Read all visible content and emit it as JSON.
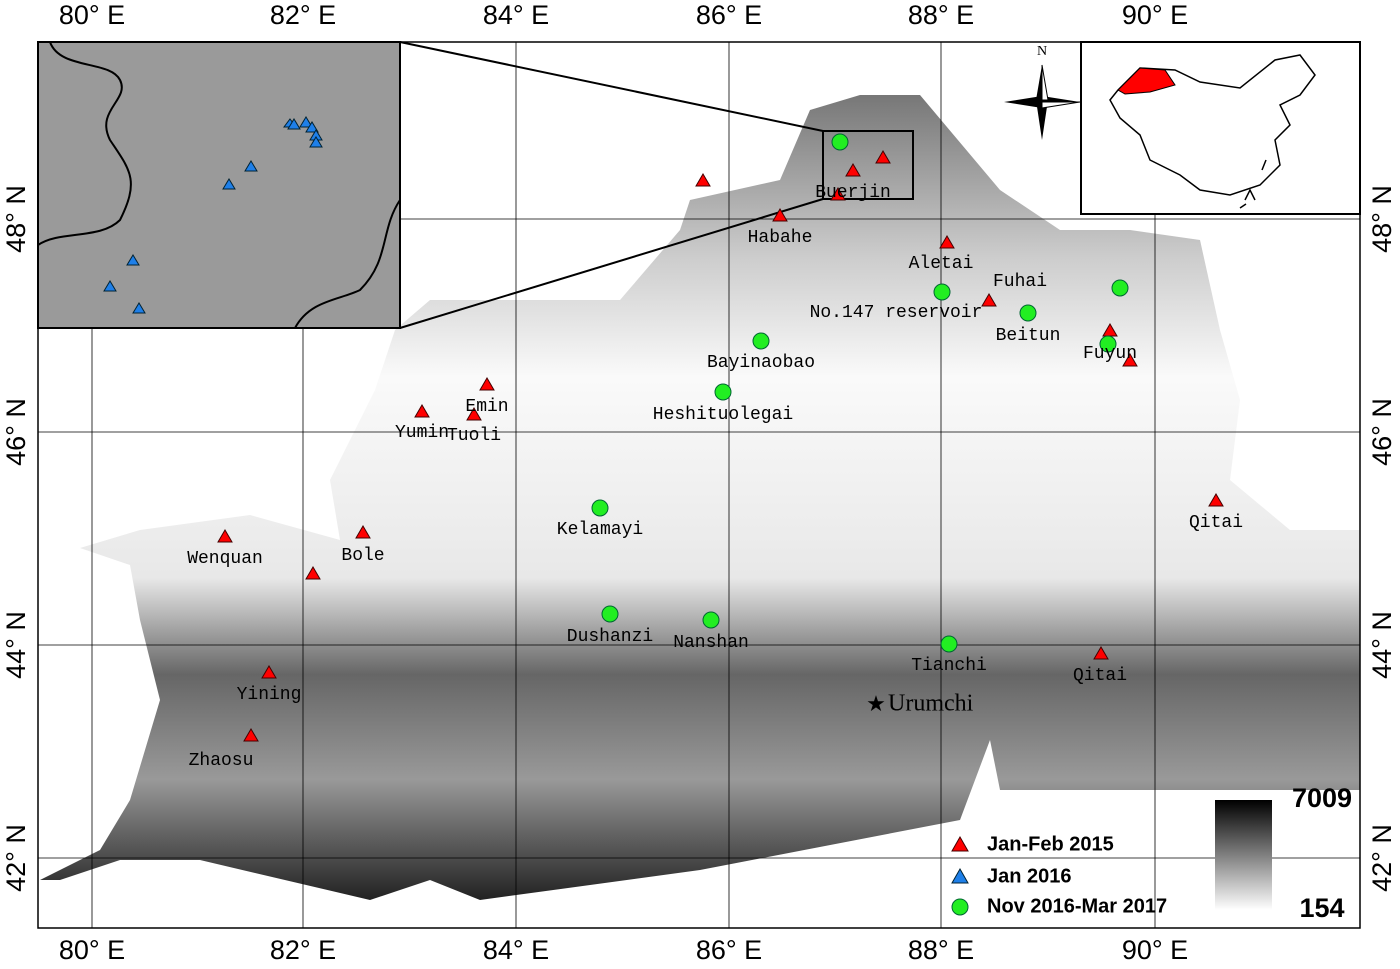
{
  "map": {
    "lon_labels": [
      "80° E",
      "82° E",
      "84° E",
      "86° E",
      "88° E",
      "90° E"
    ],
    "lat_labels": [
      "42° N",
      "44° N",
      "46° N",
      "48° N"
    ],
    "north": "N",
    "city": "Urumchi",
    "stations": [
      "Buerjin",
      "Habahe",
      "Aletai",
      "Fuhai",
      "No.147 reservoir",
      "Beitun",
      "Bayinaobao",
      "Fuyun",
      "Emin",
      "Heshituolegai",
      "Yumin",
      "Tuoli",
      "Kelamayi",
      "Qitai",
      "Wenquan",
      "Bole",
      "Dushanzi",
      "Nanshan",
      "Tianchi",
      "Qitai",
      "Yining",
      "Zhaosu"
    ],
    "legend": [
      "Jan-Feb 2015",
      "Jan 2016",
      "Nov 2016-Mar 2017"
    ],
    "colorbar": {
      "max": 7009,
      "min": 154
    }
  }
}
